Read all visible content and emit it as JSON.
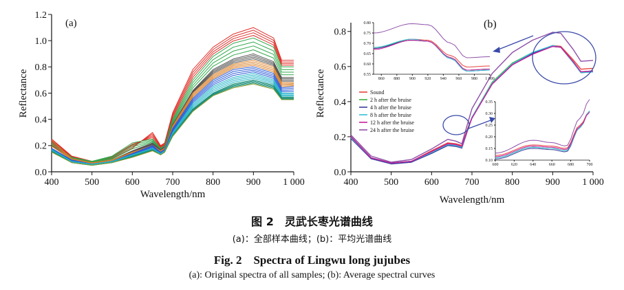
{
  "chart_data": [
    {
      "panel": "(a)",
      "type": "line",
      "xlabel": "Wavelength/nm",
      "ylabel": "Reflectance",
      "xlim": [
        400,
        1000
      ],
      "ylim": [
        0,
        1.2
      ],
      "xticks": [
        "400",
        "500",
        "600",
        "700",
        "800",
        "900",
        "1 000"
      ],
      "yticks": [
        "0.0",
        "0.2",
        "0.4",
        "0.6",
        "0.8",
        "1.0",
        "1.2"
      ],
      "x": [
        400,
        450,
        500,
        550,
        600,
        650,
        670,
        680,
        700,
        750,
        800,
        850,
        900,
        950,
        970,
        1000
      ],
      "series": [
        {
          "color": "#e0302a",
          "values": [
            0.25,
            0.12,
            0.08,
            0.1,
            0.18,
            0.3,
            0.2,
            0.22,
            0.45,
            0.78,
            0.95,
            1.05,
            1.1,
            1.02,
            0.85,
            0.85
          ]
        },
        {
          "color": "#2fa84a",
          "values": [
            0.22,
            0.11,
            0.08,
            0.12,
            0.22,
            0.25,
            0.18,
            0.2,
            0.4,
            0.7,
            0.88,
            0.98,
            1.02,
            0.95,
            0.8,
            0.8
          ]
        },
        {
          "color": "#555555",
          "values": [
            0.2,
            0.1,
            0.07,
            0.09,
            0.16,
            0.22,
            0.17,
            0.19,
            0.36,
            0.62,
            0.78,
            0.86,
            0.9,
            0.84,
            0.72,
            0.72
          ]
        },
        {
          "color": "#d9822b",
          "values": [
            0.24,
            0.1,
            0.07,
            0.09,
            0.15,
            0.2,
            0.16,
            0.18,
            0.35,
            0.6,
            0.74,
            0.82,
            0.85,
            0.8,
            0.68,
            0.68
          ]
        },
        {
          "color": "#2a5bd7",
          "values": [
            0.18,
            0.09,
            0.06,
            0.08,
            0.14,
            0.2,
            0.15,
            0.17,
            0.33,
            0.56,
            0.7,
            0.78,
            0.8,
            0.75,
            0.64,
            0.65
          ]
        },
        {
          "color": "#25b5c9",
          "values": [
            0.17,
            0.08,
            0.06,
            0.08,
            0.13,
            0.18,
            0.14,
            0.16,
            0.3,
            0.52,
            0.65,
            0.72,
            0.75,
            0.7,
            0.6,
            0.6
          ]
        },
        {
          "color": "#1b8f7a",
          "values": [
            0.16,
            0.07,
            0.05,
            0.07,
            0.12,
            0.17,
            0.13,
            0.15,
            0.28,
            0.48,
            0.6,
            0.67,
            0.7,
            0.66,
            0.57,
            0.57
          ]
        },
        {
          "color": "#8a9a2a",
          "values": [
            0.15,
            0.07,
            0.05,
            0.07,
            0.11,
            0.16,
            0.13,
            0.15,
            0.27,
            0.46,
            0.58,
            0.64,
            0.67,
            0.63,
            0.55,
            0.55
          ]
        }
      ]
    },
    {
      "panel": "(b)",
      "type": "line",
      "xlabel": "Wavelength/nm",
      "ylabel": "Reflectance",
      "xlim": [
        400,
        1000
      ],
      "ylim": [
        0,
        0.85
      ],
      "xticks": [
        "400",
        "500",
        "600",
        "700",
        "800",
        "900",
        "1 000"
      ],
      "yticks": [
        "0.0",
        "0.2",
        "0.4",
        "0.6",
        "0.8"
      ],
      "x": [
        400,
        450,
        500,
        550,
        600,
        640,
        660,
        675,
        690,
        700,
        750,
        800,
        850,
        900,
        920,
        950,
        970,
        1000
      ],
      "series": [
        {
          "name": "Sound",
          "color": "#e8413c",
          "values": [
            0.2,
            0.08,
            0.05,
            0.06,
            0.12,
            0.165,
            0.16,
            0.15,
            0.25,
            0.31,
            0.5,
            0.61,
            0.675,
            0.72,
            0.715,
            0.64,
            0.585,
            0.59
          ]
        },
        {
          "name": "2 h after the bruise",
          "color": "#3cb043",
          "values": [
            0.2,
            0.08,
            0.05,
            0.06,
            0.11,
            0.155,
            0.15,
            0.14,
            0.24,
            0.31,
            0.51,
            0.62,
            0.68,
            0.715,
            0.71,
            0.63,
            0.57,
            0.575
          ]
        },
        {
          "name": "4 h after the bruise",
          "color": "#3b3b9e",
          "values": [
            0.19,
            0.075,
            0.045,
            0.055,
            0.105,
            0.15,
            0.145,
            0.135,
            0.24,
            0.31,
            0.5,
            0.61,
            0.675,
            0.715,
            0.71,
            0.625,
            0.565,
            0.57
          ]
        },
        {
          "name": "8 h after the bruise",
          "color": "#35c0d8",
          "values": [
            0.195,
            0.08,
            0.05,
            0.06,
            0.11,
            0.155,
            0.15,
            0.14,
            0.24,
            0.31,
            0.505,
            0.615,
            0.68,
            0.72,
            0.71,
            0.625,
            0.565,
            0.57
          ]
        },
        {
          "name": "12 h after the bruise",
          "color": "#c81a9c",
          "values": [
            0.2,
            0.08,
            0.05,
            0.06,
            0.115,
            0.16,
            0.155,
            0.145,
            0.245,
            0.305,
            0.5,
            0.61,
            0.67,
            0.715,
            0.71,
            0.63,
            0.57,
            0.575
          ]
        },
        {
          "name": "24 h after the bruise",
          "color": "#8e4fa8",
          "values": [
            0.21,
            0.09,
            0.055,
            0.07,
            0.13,
            0.185,
            0.175,
            0.16,
            0.28,
            0.36,
            0.56,
            0.68,
            0.75,
            0.795,
            0.79,
            0.7,
            0.63,
            0.635
          ]
        }
      ],
      "insets": [
        {
          "xlim": [
            850,
            1000
          ],
          "ylim": [
            0.55,
            0.8
          ],
          "xticks": [
            "860",
            "880",
            "900",
            "920",
            "940",
            "960",
            "980",
            "1 000"
          ],
          "yticks": [
            "0.55",
            "0.60",
            "0.65",
            "0.70",
            "0.75",
            "0.80"
          ]
        },
        {
          "xlim": [
            600,
            700
          ],
          "ylim": [
            0.1,
            0.35
          ],
          "xticks": [
            "600",
            "620",
            "640",
            "660",
            "680",
            "700"
          ],
          "yticks": [
            "0.10",
            "0.15",
            "0.20",
            "0.25",
            "0.30",
            "0.35"
          ]
        }
      ]
    }
  ],
  "captions": {
    "zh_title": "图 2　灵武长枣光谱曲线",
    "zh_sub": "(a)：全部样本曲线；(b)：平均光谱曲线",
    "en_title": "Fig. 2　Spectra of Lingwu long jujubes",
    "en_sub": "(a): Original spectra of all samples; (b): Average spectral curves"
  }
}
